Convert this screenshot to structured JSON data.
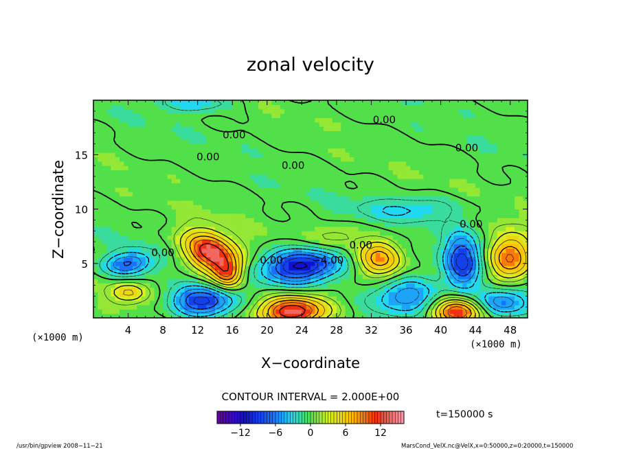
{
  "chart_data": {
    "type": "heatmap",
    "title": "zonal velocity",
    "xlabel": "X−coordinate",
    "ylabel": "Z−coordinate",
    "x_unit_label": "(×1000 m)",
    "z_unit_label": "(×1000 m)",
    "xlim": [
      0,
      50
    ],
    "ylim": [
      0,
      20
    ],
    "x_ticks": [
      4,
      8,
      12,
      16,
      20,
      24,
      28,
      32,
      36,
      40,
      44,
      48
    ],
    "y_ticks": [
      5,
      10,
      15
    ],
    "contour_interval_text": "CONTOUR INTERVAL = 2.000E+00",
    "time_text": "t=150000 s",
    "contour_label": "0.00",
    "contour_label_neg": "−4.00",
    "colorbar": {
      "range": [
        -16,
        16
      ],
      "ticks": [
        -12,
        -6,
        0,
        6,
        12
      ],
      "tick_labels": [
        "−12",
        "−6",
        "0",
        "6",
        "12"
      ]
    },
    "features": [
      {
        "x": 13.5,
        "z": 6.0,
        "sx": 2.2,
        "sz": 1.4,
        "amp": 14,
        "tilt": -0.5
      },
      {
        "x": 15.5,
        "z": 4.0,
        "sx": 1.2,
        "sz": 1.0,
        "amp": 8,
        "tilt": 0.0
      },
      {
        "x": 23.0,
        "z": 0.6,
        "sx": 2.8,
        "sz": 1.0,
        "amp": 15,
        "tilt": 0.0
      },
      {
        "x": 33.0,
        "z": 5.5,
        "sx": 1.8,
        "sz": 1.2,
        "amp": 9,
        "tilt": 0.0
      },
      {
        "x": 42.0,
        "z": 0.6,
        "sx": 2.0,
        "sz": 0.9,
        "amp": 12,
        "tilt": 0.0
      },
      {
        "x": 48.0,
        "z": 5.5,
        "sx": 1.8,
        "sz": 1.6,
        "amp": 11,
        "tilt": 0.0
      },
      {
        "x": 4.0,
        "z": 2.3,
        "sx": 1.5,
        "sz": 0.7,
        "amp": 6,
        "tilt": 0.0
      },
      {
        "x": 24.0,
        "z": 4.8,
        "sx": 3.2,
        "sz": 1.1,
        "amp": -13,
        "tilt": 0.3
      },
      {
        "x": 12.5,
        "z": 1.5,
        "sx": 2.5,
        "sz": 1.0,
        "amp": -11,
        "tilt": 0.0
      },
      {
        "x": 4.0,
        "z": 5.0,
        "sx": 2.0,
        "sz": 0.8,
        "amp": -8,
        "tilt": 0.5
      },
      {
        "x": 36.0,
        "z": 2.0,
        "sx": 2.8,
        "sz": 1.2,
        "amp": -8,
        "tilt": 0.0
      },
      {
        "x": 42.5,
        "z": 5.2,
        "sx": 1.5,
        "sz": 1.8,
        "amp": -10,
        "tilt": 0.0
      },
      {
        "x": 47.0,
        "z": 1.5,
        "sx": 2.2,
        "sz": 1.0,
        "amp": -8,
        "tilt": 0.0
      },
      {
        "x": 36.5,
        "z": 10.0,
        "sx": 4.0,
        "sz": 0.8,
        "amp": -4,
        "tilt": 0.0
      },
      {
        "x": 12.0,
        "z": 19.8,
        "sx": 3.0,
        "sz": 0.6,
        "amp": -4,
        "tilt": 0.0
      },
      {
        "x": 28.0,
        "z": 7.5,
        "sx": 2.0,
        "sz": 0.8,
        "amp": 3,
        "tilt": 0.0
      }
    ],
    "labels_zero": [
      {
        "x": 33.5,
        "z": 18.2
      },
      {
        "x": 16.2,
        "z": 16.8
      },
      {
        "x": 13.2,
        "z": 14.8
      },
      {
        "x": 23.0,
        "z": 14.0
      },
      {
        "x": 43.0,
        "z": 15.6
      },
      {
        "x": 43.5,
        "z": 8.6
      },
      {
        "x": 8.0,
        "z": 6.0
      },
      {
        "x": 20.5,
        "z": 5.3
      },
      {
        "x": 30.8,
        "z": 6.7
      }
    ],
    "labels_neg": [
      {
        "x": 27.0,
        "z": 5.3
      }
    ]
  },
  "footer": {
    "left": "/usr/bin/gpview   2008−11−21",
    "right": "MarsCond_VelX.nc@VelX,x=0:50000,z=0:20000,t=150000"
  }
}
